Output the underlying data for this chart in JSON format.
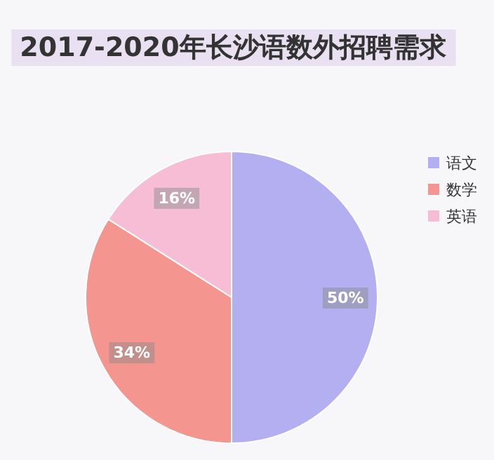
{
  "chart_data": {
    "type": "pie",
    "title": "2017-2020年长沙语数外招聘需求",
    "categories": [
      "语文",
      "数学",
      "英语"
    ],
    "values": [
      50,
      34,
      16
    ],
    "value_labels": [
      "50%",
      "34%",
      "16%"
    ],
    "colors": [
      "#b3aff0",
      "#f4958f",
      "#f6bdd5"
    ],
    "legend": "right"
  }
}
